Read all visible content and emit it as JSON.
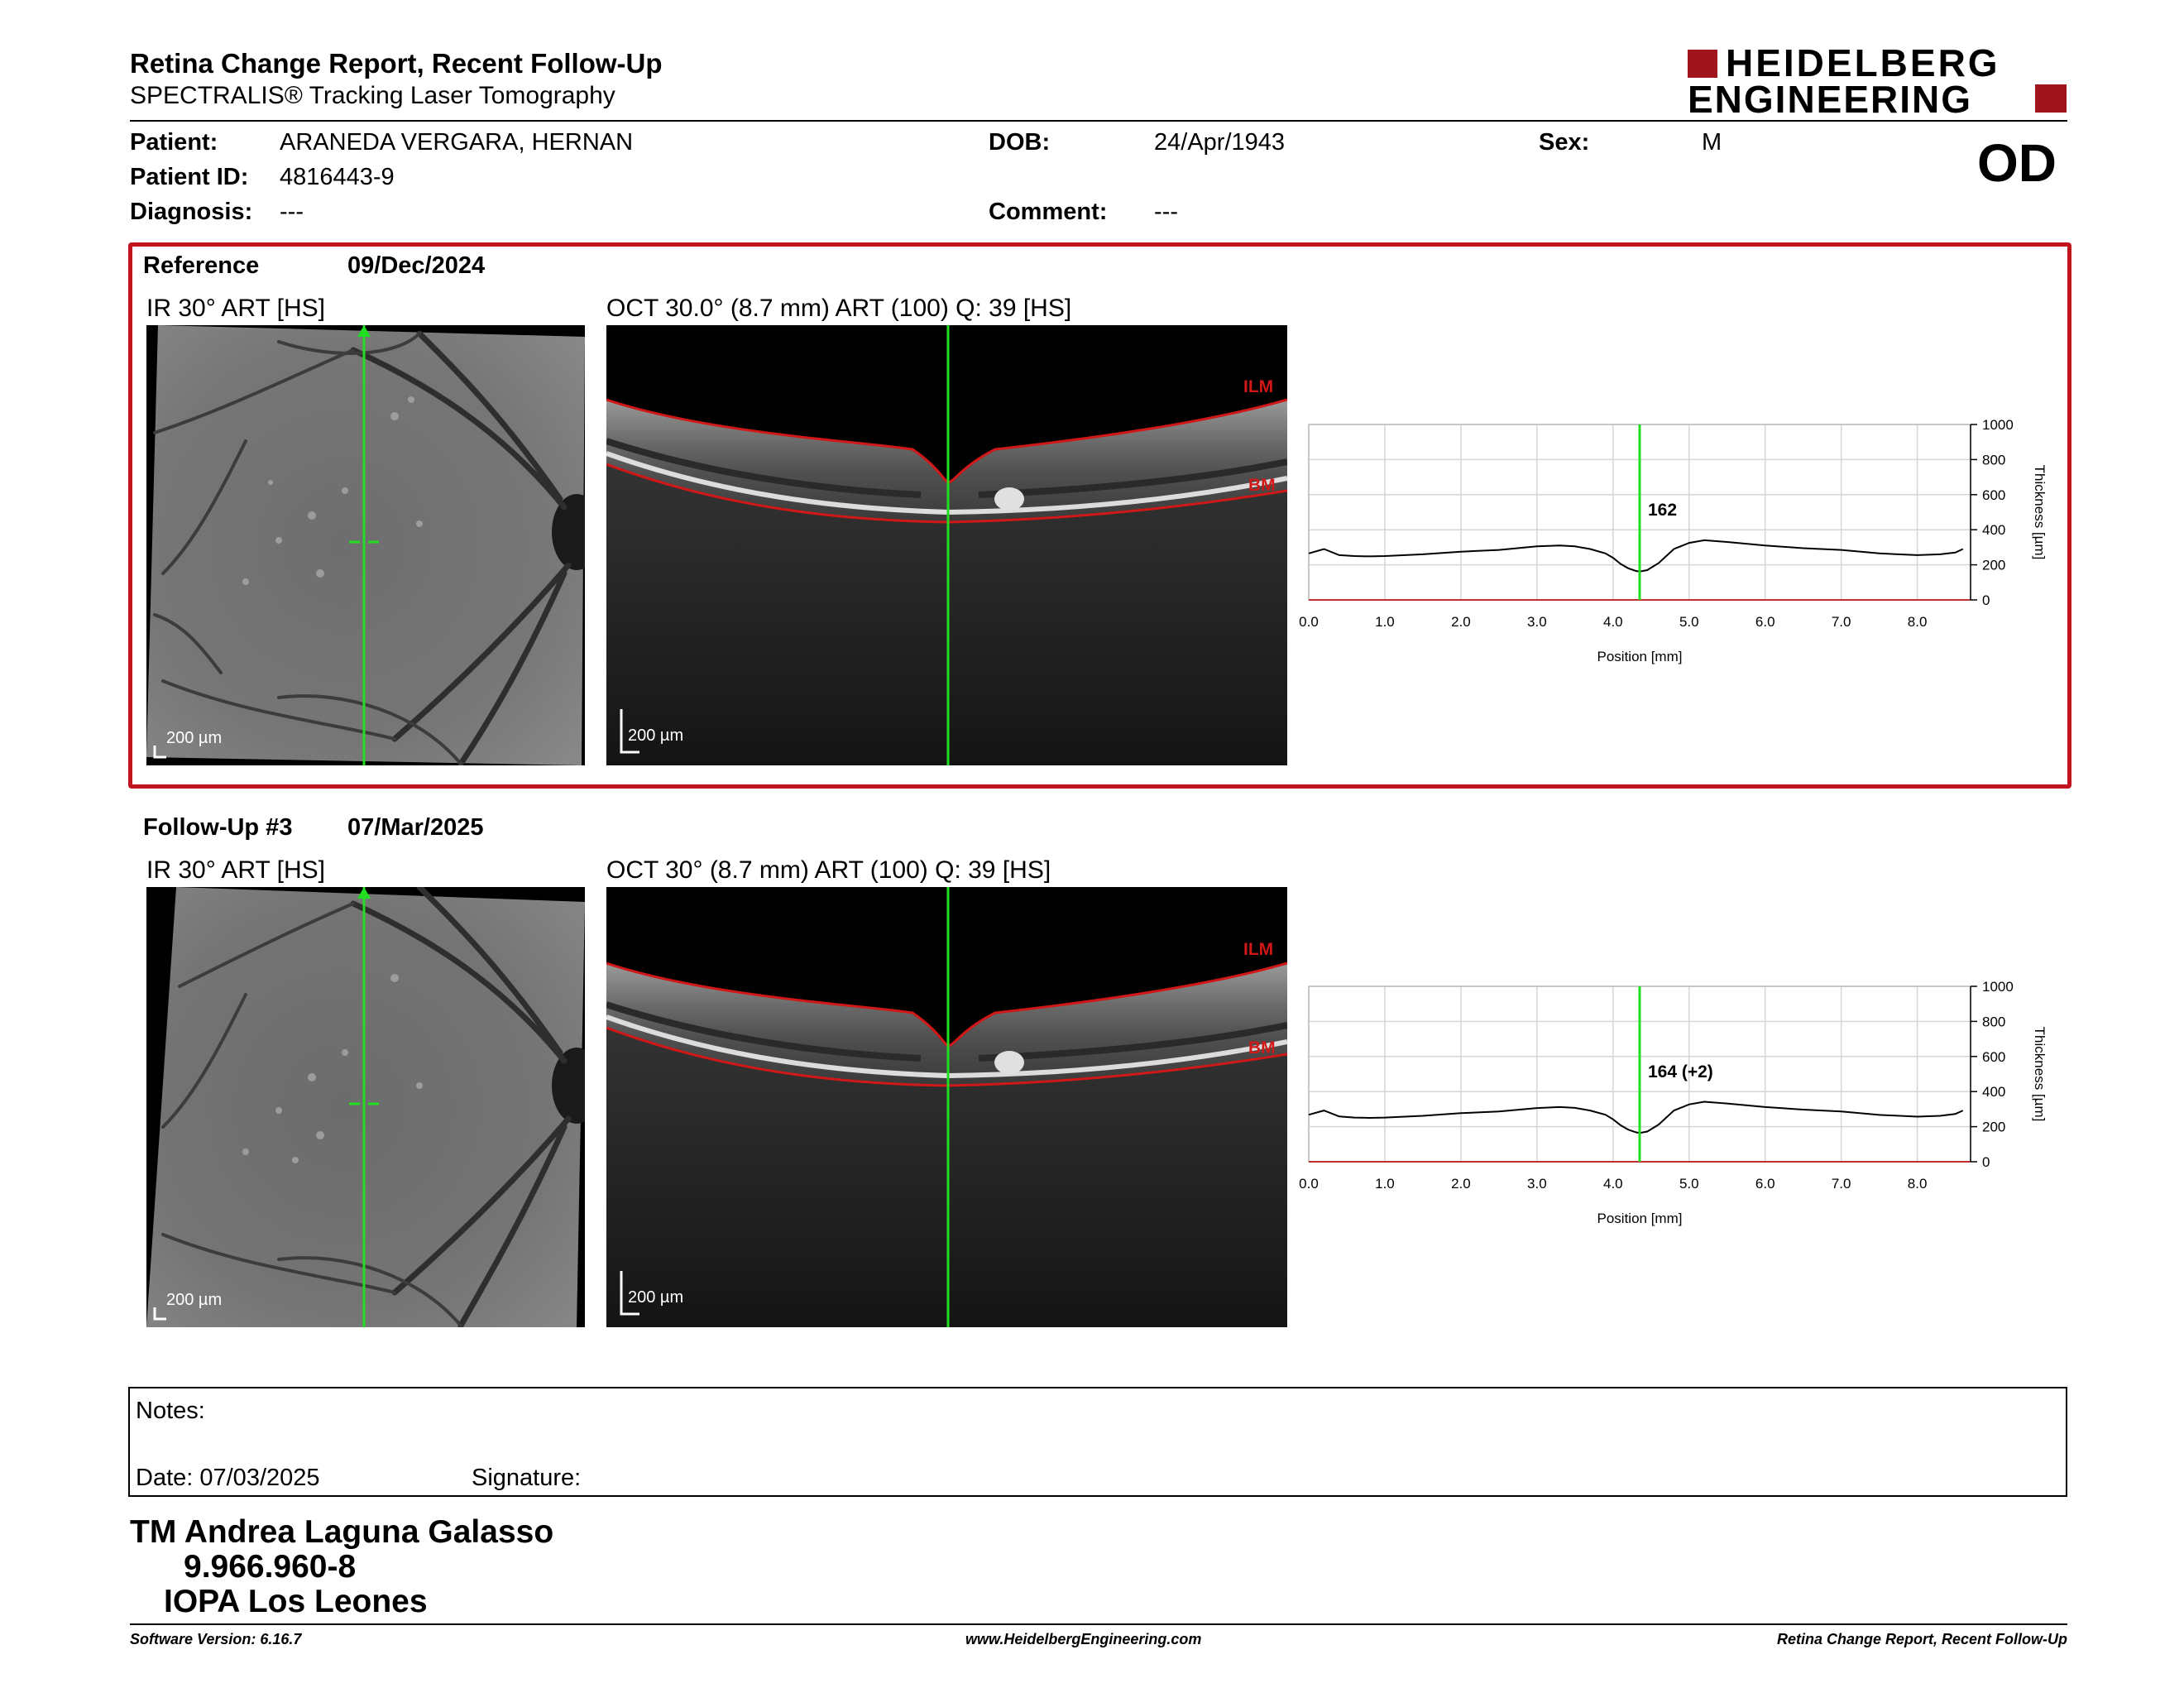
{
  "header": {
    "title": "Retina Change Report, Recent Follow-Up",
    "subtitle": "SPECTRALIS® Tracking Laser Tomography",
    "logo_line1": "HEIDELBERG",
    "logo_line2": "ENGINEERING"
  },
  "patient": {
    "patient_label": "Patient:",
    "patient_value": "ARANEDA VERGARA, HERNAN",
    "id_label": "Patient ID:",
    "id_value": "4816443-9",
    "diagnosis_label": "Diagnosis:",
    "diagnosis_value": "---",
    "dob_label": "DOB:",
    "dob_value": "24/Apr/1943",
    "comment_label": "Comment:",
    "comment_value": "---",
    "sex_label": "Sex:",
    "sex_value": "M",
    "eye": "OD"
  },
  "reference": {
    "label": "Reference",
    "date": "09/Dec/2024",
    "ir_title": "IR 30° ART [HS]",
    "oct_title": "OCT 30.0° (8.7 mm) ART (100) Q: 39 [HS]",
    "scale": "200 µm",
    "ilm": "ILM",
    "bm": "BM",
    "marker_value": "162"
  },
  "followup": {
    "label": "Follow-Up #3",
    "date": "07/Mar/2025",
    "ir_title": "IR 30° ART [HS]",
    "oct_title": "OCT 30° (8.7 mm) ART (100) Q: 39 [HS]",
    "scale": "200 µm",
    "ilm": "ILM",
    "bm": "BM",
    "marker_value": "164 (+2)"
  },
  "chart_data": [
    {
      "type": "line",
      "xlabel": "Position [mm]",
      "ylabel": "Thickness [µm]",
      "xlim": [
        0,
        8.7
      ],
      "ylim": [
        0,
        1000
      ],
      "x_ticks": [
        "0.0",
        "1.0",
        "2.0",
        "3.0",
        "4.0",
        "5.0",
        "6.0",
        "7.0",
        "8.0"
      ],
      "y_ticks": [
        "0",
        "200",
        "400",
        "600",
        "800",
        "1000"
      ],
      "marker_x": 4.35,
      "marker_label": "162",
      "series": [
        {
          "x": [
            0,
            0.2,
            0.4,
            0.6,
            0.8,
            1.0,
            1.5,
            2.0,
            2.5,
            3.0,
            3.3,
            3.5,
            3.7,
            3.9,
            4.0,
            4.1,
            4.2,
            4.3,
            4.35,
            4.45,
            4.6,
            4.8,
            5.0,
            5.2,
            5.5,
            6.0,
            6.5,
            7.0,
            7.5,
            8.0,
            8.3,
            8.5,
            8.6
          ],
          "values": [
            265,
            290,
            255,
            250,
            248,
            250,
            260,
            275,
            285,
            305,
            310,
            305,
            290,
            265,
            240,
            205,
            180,
            165,
            162,
            170,
            210,
            290,
            325,
            340,
            330,
            310,
            295,
            285,
            265,
            255,
            260,
            270,
            290
          ]
        }
      ]
    },
    {
      "type": "line",
      "xlabel": "Position [mm]",
      "ylabel": "Thickness [µm]",
      "xlim": [
        0,
        8.7
      ],
      "ylim": [
        0,
        1000
      ],
      "x_ticks": [
        "0.0",
        "1.0",
        "2.0",
        "3.0",
        "4.0",
        "5.0",
        "6.0",
        "7.0",
        "8.0"
      ],
      "y_ticks": [
        "0",
        "200",
        "400",
        "600",
        "800",
        "1000"
      ],
      "marker_x": 4.35,
      "marker_label": "164 (+2)",
      "series": [
        {
          "x": [
            0,
            0.2,
            0.4,
            0.6,
            0.8,
            1.0,
            1.5,
            2.0,
            2.5,
            3.0,
            3.3,
            3.5,
            3.7,
            3.9,
            4.0,
            4.1,
            4.2,
            4.3,
            4.35,
            4.45,
            4.6,
            4.8,
            5.0,
            5.2,
            5.5,
            6.0,
            6.5,
            7.0,
            7.5,
            8.0,
            8.3,
            8.5,
            8.6
          ],
          "values": [
            268,
            292,
            258,
            252,
            250,
            252,
            262,
            277,
            287,
            306,
            312,
            307,
            292,
            268,
            242,
            208,
            183,
            168,
            164,
            172,
            212,
            292,
            327,
            342,
            332,
            312,
            297,
            287,
            267,
            257,
            262,
            272,
            292
          ]
        }
      ]
    }
  ],
  "notes": {
    "label": "Notes:",
    "date_label": "Date: 07/03/2025",
    "signature_label": "Signature:"
  },
  "signer": {
    "name": "TM Andrea Laguna Galasso",
    "id": "9.966.960-8",
    "institution": "IOPA Los Leones"
  },
  "footer": {
    "software": "Software Version: 6.16.7",
    "website": "www.HeidelbergEngineering.com",
    "report": "Retina Change Report, Recent Follow-Up"
  }
}
